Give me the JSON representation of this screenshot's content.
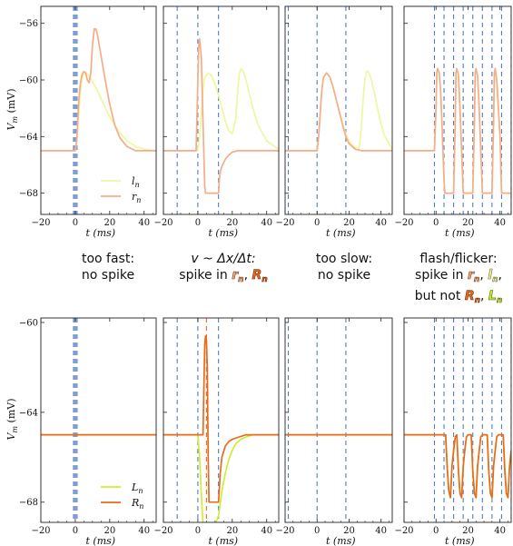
{
  "colors": {
    "l_n": "#eef7a0",
    "r_n": "#f6ad87",
    "L_n": "#cdee36",
    "R_n": "#ea6a1c",
    "stimulus": "#4f7cc9",
    "stimulus_dense": "#7f9fd6"
  },
  "labels": {
    "top_ylabel": "V_m (mV)",
    "bottom_ylabel": "V_m (mV)",
    "xlabel": "t (ms)",
    "legend_top": [
      "l_n",
      "r_n"
    ],
    "legend_bottom": [
      "L_n",
      "R_n"
    ]
  },
  "captions": {
    "fast": [
      "too fast:",
      "no spike"
    ],
    "match_prefix": "v ~ Δx/Δt:",
    "match_line2_prefix": "spike in ",
    "slow": [
      "too slow:",
      "no spike"
    ],
    "flicker_line1": "flash/flicker:",
    "flicker_line2_prefix": "spike in ",
    "flicker_line3_prefix": "but not ",
    "sym_r": "r",
    "sym_R": "R",
    "sym_l": "l",
    "sym_L": "L",
    "sub_n": "n",
    "sep": ", "
  },
  "chart_data": [
    {
      "type": "line",
      "panel": "top-1",
      "xlim": [
        -20,
        47
      ],
      "ylim": [
        -69.5,
        -54.8
      ],
      "xticks": [
        -20,
        0,
        20,
        40
      ],
      "yticks": [
        -68,
        -64,
        -60,
        -56
      ],
      "stimulus_times": [
        -1,
        -0.5,
        0,
        0.5,
        1
      ],
      "series": [
        {
          "name": "l_n",
          "color": "#eef7a0",
          "x": [
            -20,
            0,
            1,
            2,
            3,
            4,
            5,
            6,
            8,
            10,
            13,
            16,
            20,
            25,
            30,
            35,
            40,
            47
          ],
          "y": [
            -65,
            -65,
            -64.2,
            -62.4,
            -60.8,
            -59.9,
            -59.6,
            -59.5,
            -59.7,
            -60.1,
            -60.8,
            -61.6,
            -62.6,
            -63.6,
            -64.3,
            -64.7,
            -64.9,
            -65
          ]
        },
        {
          "name": "r_n",
          "color": "#f6ad87",
          "x": [
            -20,
            0,
            1,
            2,
            3,
            4,
            5,
            6,
            7,
            8,
            9,
            10,
            11,
            12,
            13,
            14,
            16,
            18,
            20,
            23,
            26,
            30,
            35,
            40,
            47
          ],
          "y": [
            -65,
            -65,
            -64,
            -61.5,
            -60.2,
            -59.6,
            -59.4,
            -59.5,
            -60,
            -60.2,
            -59.5,
            -57.5,
            -56.4,
            -56.4,
            -56.9,
            -57.6,
            -59,
            -60.4,
            -61.7,
            -63.2,
            -64.1,
            -64.7,
            -65,
            -65,
            -65
          ]
        }
      ]
    },
    {
      "type": "line",
      "panel": "top-2",
      "xlim": [
        -20,
        47
      ],
      "ylim": [
        -69.5,
        -54.8
      ],
      "xticks": [
        -20,
        0,
        20,
        40
      ],
      "stimulus_times": [
        -12,
        0,
        12
      ],
      "series": [
        {
          "name": "l_n",
          "color": "#eef7a0",
          "x": [
            -20,
            0,
            1,
            2,
            3,
            4,
            6,
            8,
            10,
            12,
            14,
            16,
            18,
            20,
            22,
            23,
            24,
            25,
            26,
            27,
            28,
            30,
            32,
            35,
            40,
            47
          ],
          "y": [
            -65,
            -65,
            -64,
            -62.3,
            -60.7,
            -59.8,
            -59.5,
            -59.7,
            -60.3,
            -61.1,
            -62,
            -62.9,
            -63.6,
            -63.8,
            -62.8,
            -61,
            -59.6,
            -59.2,
            -59.3,
            -59.6,
            -60,
            -61,
            -62,
            -63.2,
            -64.3,
            -64.9
          ]
        },
        {
          "name": "r_n",
          "color": "#f6ad87",
          "x": [
            -20,
            -1,
            0,
            0.5,
            1,
            2,
            3,
            4,
            4.5,
            5,
            6,
            8,
            10,
            12,
            12.5,
            13,
            14,
            16,
            18,
            20,
            23,
            26,
            30,
            35,
            40,
            47
          ],
          "y": [
            -65,
            -65,
            -60,
            -57.6,
            -57.1,
            -58.3,
            -63,
            -67.5,
            -68,
            -68,
            -68,
            -68,
            -68,
            -68,
            -67,
            -66.5,
            -66.1,
            -65.6,
            -65.3,
            -65.1,
            -65,
            -65,
            -65,
            -65,
            -65,
            -65
          ]
        }
      ]
    },
    {
      "type": "line",
      "panel": "top-3",
      "xlim": [
        -20,
        47
      ],
      "ylim": [
        -69.5,
        -54.8
      ],
      "xticks": [
        -20,
        0,
        20,
        40
      ],
      "stimulus_times": [
        -18,
        0,
        18
      ],
      "series": [
        {
          "name": "l_n",
          "color": "#eef7a0",
          "x": [
            -20,
            0,
            1,
            2,
            3,
            4,
            6,
            8,
            10,
            12,
            14,
            16,
            18,
            20,
            22,
            24,
            26,
            27,
            28,
            29,
            30,
            31,
            32,
            34,
            36,
            38,
            40,
            42,
            47
          ],
          "y": [
            -65,
            -65,
            -64,
            -62.3,
            -60.7,
            -59.8,
            -59.5,
            -59.8,
            -60.5,
            -61.4,
            -62.3,
            -63.1,
            -63.8,
            -64.3,
            -64.6,
            -64.8,
            -64.9,
            -64.2,
            -62.8,
            -61.1,
            -59.9,
            -59.4,
            -59.4,
            -60,
            -61,
            -62.1,
            -63.1,
            -63.9,
            -64.9
          ]
        },
        {
          "name": "r_n",
          "color": "#f6ad87",
          "x": [
            -20,
            0,
            1,
            2,
            3,
            4,
            6,
            8,
            10,
            12,
            14,
            16,
            18,
            20,
            24,
            28,
            32,
            36,
            40,
            47
          ],
          "y": [
            -65,
            -65,
            -64,
            -62.3,
            -60.7,
            -59.8,
            -59.5,
            -59.8,
            -60.5,
            -61.4,
            -62.3,
            -63.2,
            -64,
            -64.5,
            -64.9,
            -65,
            -65,
            -65,
            -65,
            -65
          ]
        }
      ]
    },
    {
      "type": "line",
      "panel": "top-4",
      "xlim": [
        -20,
        47
      ],
      "ylim": [
        -69.5,
        -54.8
      ],
      "xticks": [
        -20,
        0,
        20,
        40
      ],
      "stimulus_times": [
        -1,
        5,
        11,
        17,
        23,
        29,
        35,
        41,
        47
      ],
      "series": [
        {
          "name": "l_n",
          "color": "#eef7a0",
          "x": [
            -20,
            -1,
            0,
            0.5,
            1,
            2,
            3,
            4,
            5,
            5.5,
            6,
            7,
            8,
            9,
            10,
            11,
            12,
            12.5,
            13,
            14,
            15,
            16,
            17,
            17.5,
            18,
            19,
            20,
            22,
            23,
            24,
            24.5,
            25,
            26,
            27,
            28,
            29,
            29.5,
            30,
            31,
            32,
            34,
            35,
            36,
            36.5,
            37,
            38,
            40,
            41,
            42,
            42.5,
            43,
            44,
            46,
            47
          ],
          "y": [
            -65,
            -65,
            -62,
            -59.5,
            -59.2,
            -59.5,
            -61,
            -64,
            -67,
            -68,
            -68,
            -68,
            -68,
            -68,
            -68,
            -68,
            -63,
            -59.5,
            -59.2,
            -59.6,
            -62,
            -65,
            -68,
            -68,
            -68,
            -68,
            -68,
            -68,
            -68,
            -63,
            -59.5,
            -59.2,
            -59.7,
            -62,
            -65,
            -68,
            -68,
            -68,
            -68,
            -68,
            -68,
            -68,
            -63,
            -59.5,
            -59.2,
            -60,
            -64,
            -68,
            -68,
            -68,
            -68,
            -68,
            -68,
            -68
          ]
        },
        {
          "name": "r_n",
          "color": "#f6ad87",
          "x": [
            -20,
            -1,
            0,
            0.5,
            1,
            2,
            3,
            4,
            5,
            5.5,
            6,
            7,
            8,
            9,
            10,
            11,
            12,
            12.5,
            13,
            14,
            15,
            16,
            17,
            17.5,
            18,
            19,
            20,
            22,
            23,
            24,
            24.5,
            25,
            26,
            27,
            28,
            29,
            29.5,
            30,
            31,
            32,
            34,
            35,
            36,
            36.5,
            37,
            38,
            40,
            41,
            42,
            42.5,
            43,
            44,
            46,
            47
          ],
          "y": [
            -65,
            -65,
            -62,
            -59.5,
            -59.2,
            -59.5,
            -61,
            -64,
            -67,
            -68,
            -68,
            -68,
            -68,
            -68,
            -68,
            -68,
            -63,
            -59.5,
            -59.2,
            -59.6,
            -62,
            -65,
            -68,
            -68,
            -68,
            -68,
            -68,
            -68,
            -68,
            -63,
            -59.5,
            -59.2,
            -59.7,
            -62,
            -65,
            -68,
            -68,
            -68,
            -68,
            -68,
            -68,
            -68,
            -63,
            -59.5,
            -59.2,
            -60,
            -64,
            -68,
            -68,
            -68,
            -68,
            -68,
            -68,
            -68
          ]
        }
      ]
    },
    {
      "type": "line",
      "panel": "bottom-1",
      "xlim": [
        -20,
        47
      ],
      "ylim": [
        -68.9,
        -59.8
      ],
      "xticks": [
        -20,
        0,
        20,
        40
      ],
      "yticks": [
        -68,
        -64,
        -60
      ],
      "stimulus_times": [
        -1,
        -0.5,
        0,
        0.5,
        1
      ],
      "series": [
        {
          "name": "L_n",
          "color": "#cdee36",
          "x": [
            -20,
            47
          ],
          "y": [
            -65,
            -65
          ]
        },
        {
          "name": "R_n",
          "color": "#ea6a1c",
          "x": [
            -20,
            47
          ],
          "y": [
            -65,
            -65
          ]
        }
      ]
    },
    {
      "type": "line",
      "panel": "bottom-2",
      "xlim": [
        -20,
        47
      ],
      "ylim": [
        -68.9,
        -59.8
      ],
      "xticks": [
        -20,
        0,
        20,
        40
      ],
      "stimulus_times": [
        -12,
        0,
        12
      ],
      "marker_time": 5,
      "series": [
        {
          "name": "L_n",
          "color": "#cdee36",
          "x": [
            -20,
            0,
            1,
            2,
            3,
            4,
            5,
            6,
            8,
            10,
            12,
            14,
            16,
            18,
            20,
            22,
            25,
            28,
            32,
            36,
            40,
            47
          ],
          "y": [
            -65,
            -65,
            -66,
            -67.6,
            -69,
            -69,
            -69,
            -69,
            -69,
            -69,
            -68.6,
            -67.5,
            -66.7,
            -66.1,
            -65.7,
            -65.4,
            -65.2,
            -65.1,
            -65,
            -65,
            -65,
            -65
          ]
        },
        {
          "name": "R_n",
          "color": "#ea6a1c",
          "x": [
            -20,
            2,
            3,
            3.5,
            4,
            4.5,
            5,
            5.5,
            6,
            6.5,
            7,
            8,
            10,
            12,
            13,
            14,
            16,
            18,
            20,
            24,
            28,
            32,
            40,
            47
          ],
          "y": [
            -65,
            -65,
            -65,
            -63,
            -61,
            -60.6,
            -60.8,
            -62,
            -66,
            -68,
            -68,
            -68,
            -68,
            -68,
            -66.7,
            -66,
            -65.5,
            -65.3,
            -65.2,
            -65.1,
            -65,
            -65,
            -65,
            -65
          ]
        }
      ]
    },
    {
      "type": "line",
      "panel": "bottom-3",
      "xlim": [
        -20,
        47
      ],
      "ylim": [
        -68.9,
        -59.8
      ],
      "xticks": [
        -20,
        0,
        20,
        40
      ],
      "stimulus_times": [
        -18,
        0,
        18
      ],
      "series": [
        {
          "name": "L_n",
          "color": "#cdee36",
          "x": [
            -20,
            47
          ],
          "y": [
            -65,
            -65
          ]
        },
        {
          "name": "R_n",
          "color": "#ea6a1c",
          "x": [
            -20,
            47
          ],
          "y": [
            -65,
            -65
          ]
        }
      ]
    },
    {
      "type": "line",
      "panel": "bottom-4",
      "xlim": [
        -20,
        47
      ],
      "ylim": [
        -68.9,
        -59.8
      ],
      "xticks": [
        -20,
        0,
        20,
        40
      ],
      "stimulus_times": [
        -1,
        5,
        11,
        17,
        23,
        29,
        35,
        41,
        47
      ],
      "series": [
        {
          "name": "L_n",
          "color": "#cdee36",
          "x": [
            -20,
            6,
            7,
            8,
            9,
            10,
            11,
            12,
            13,
            14,
            15,
            16,
            17,
            18,
            19,
            20,
            21,
            22,
            23,
            24,
            25,
            26,
            27,
            28,
            29,
            30,
            31,
            32,
            33,
            34,
            35,
            36,
            37,
            38,
            39,
            40,
            41,
            42,
            43,
            44,
            45,
            46,
            47
          ],
          "y": [
            -65,
            -65,
            -66.5,
            -67.5,
            -67.8,
            -66.4,
            -65.7,
            -65.1,
            -65,
            -66.6,
            -67.6,
            -67.8,
            -66.4,
            -65.7,
            -65.1,
            -65,
            -65,
            -65,
            -66.6,
            -67.6,
            -67.8,
            -66.4,
            -65.7,
            -65.1,
            -65,
            -65,
            -65,
            -65,
            -66.6,
            -67.6,
            -67.8,
            -66.4,
            -65.7,
            -65.1,
            -65,
            -65,
            -65,
            -65,
            -66.6,
            -67.6,
            -67.8,
            -66.4,
            -65.7
          ]
        },
        {
          "name": "R_n",
          "color": "#ea6a1c",
          "x": [
            -20,
            6,
            7,
            8,
            9,
            10,
            11,
            12,
            13,
            14,
            15,
            16,
            17,
            18,
            19,
            20,
            21,
            22,
            23,
            24,
            25,
            26,
            27,
            28,
            29,
            30,
            31,
            32,
            33,
            34,
            35,
            36,
            37,
            38,
            39,
            40,
            41,
            42,
            43,
            44,
            45,
            46,
            47
          ],
          "y": [
            -65,
            -65,
            -66.5,
            -67.5,
            -67.8,
            -66.4,
            -65.7,
            -65.1,
            -65,
            -66.6,
            -67.6,
            -67.8,
            -66.4,
            -65.7,
            -65.1,
            -65,
            -65,
            -65,
            -66.6,
            -67.6,
            -67.8,
            -66.4,
            -65.7,
            -65.1,
            -65,
            -65,
            -65,
            -65,
            -66.6,
            -67.6,
            -67.8,
            -66.4,
            -65.7,
            -65.1,
            -65,
            -65,
            -65,
            -65,
            -66.6,
            -67.6,
            -67.8,
            -66.4,
            -65.7
          ]
        }
      ]
    }
  ]
}
